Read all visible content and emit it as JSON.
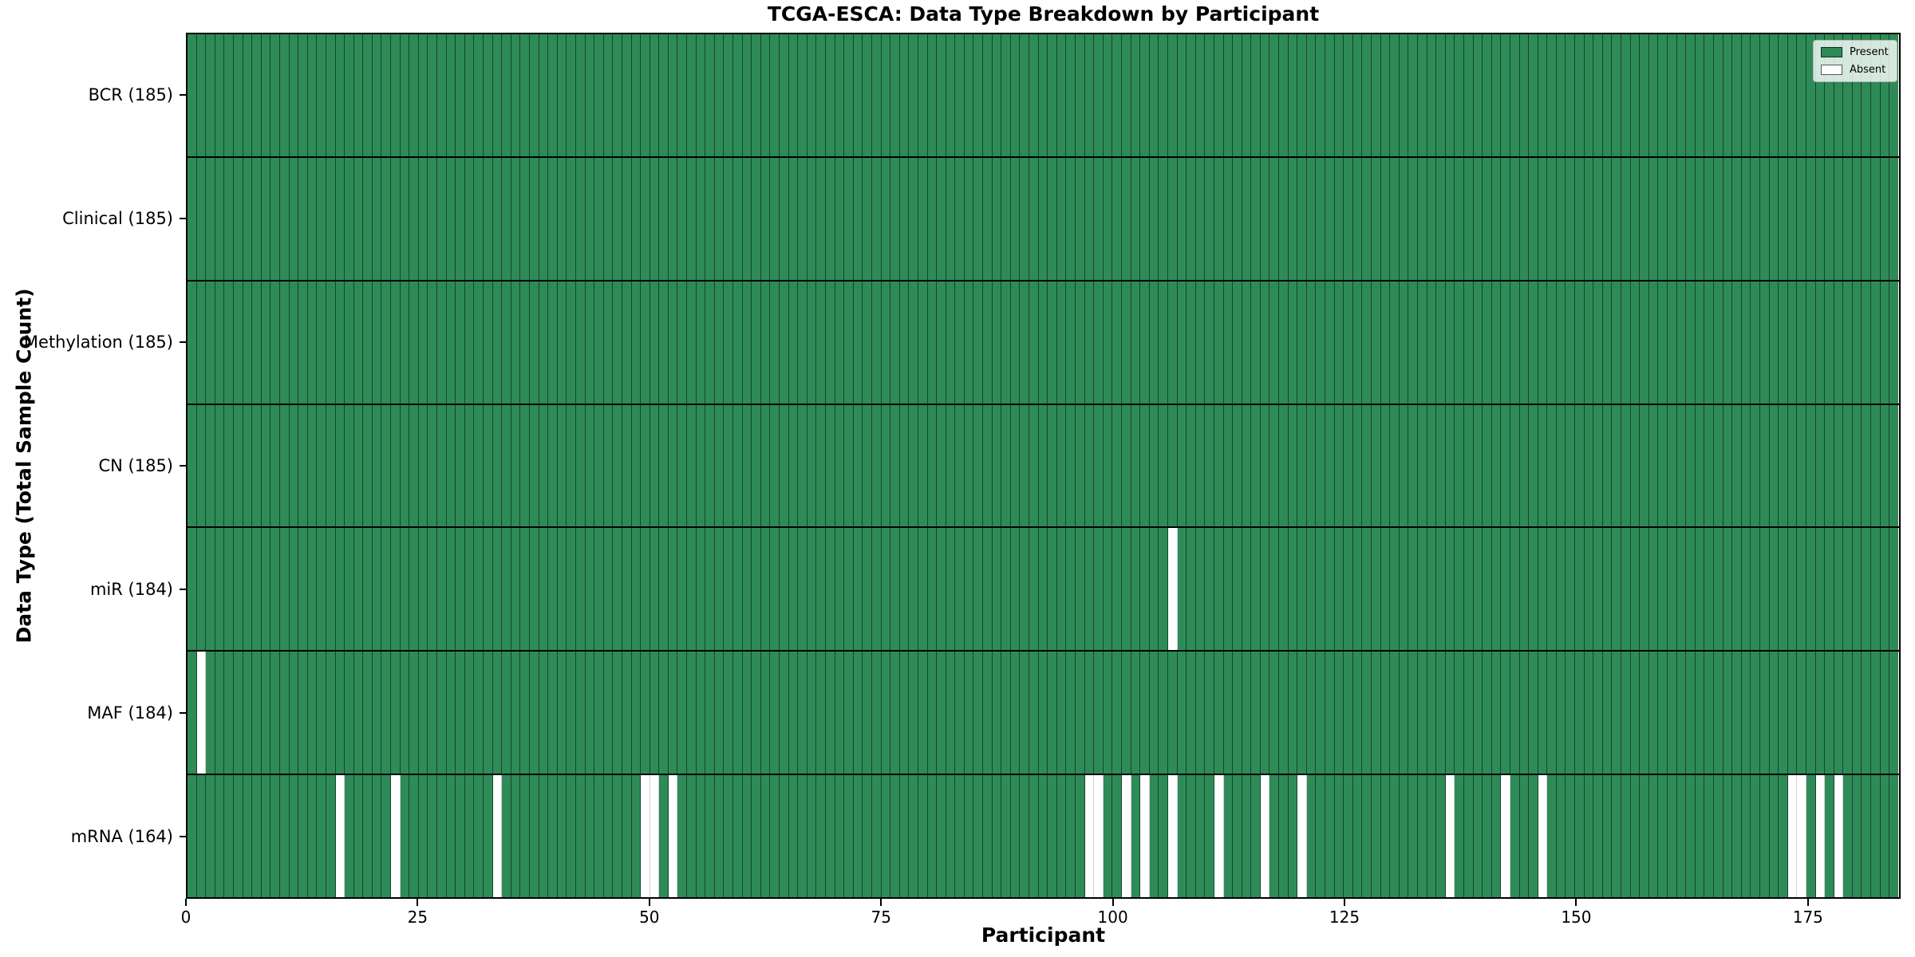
{
  "title": "TCGA-ESCA: Data Type Breakdown by Participant",
  "axes": {
    "xlabel": "Participant",
    "ylabel": "Data Type (Total Sample Count)"
  },
  "legend": {
    "items": [
      {
        "label": "Present",
        "color": "#2e8b57"
      },
      {
        "label": "Absent",
        "color": "#ffffff"
      }
    ]
  },
  "colors": {
    "present": "#2e8b57",
    "absent": "#ffffff",
    "spine": "#000000"
  },
  "chart_data": {
    "type": "heatmap",
    "title": "TCGA-ESCA: Data Type Breakdown by Participant",
    "xlabel": "Participant",
    "ylabel": "Data Type (Total Sample Count)",
    "n_participants": 185,
    "x_axis": {
      "min": 0,
      "max": 185,
      "ticks": [
        0,
        25,
        50,
        75,
        100,
        125,
        150,
        175
      ]
    },
    "legend_position": "upper right",
    "grid": "cell-edges",
    "value_encoding": {
      "present": 1,
      "absent": 0
    },
    "rows": [
      {
        "key": "bcr",
        "label": "BCR (185)",
        "data_type": "BCR",
        "total_count": 185,
        "absent_participants": []
      },
      {
        "key": "clinical",
        "label": "Clinical (185)",
        "data_type": "Clinical",
        "total_count": 185,
        "absent_participants": []
      },
      {
        "key": "methylation",
        "label": "Methylation (185)",
        "data_type": "Methylation",
        "total_count": 185,
        "absent_participants": []
      },
      {
        "key": "cn",
        "label": "CN (185)",
        "data_type": "CN",
        "total_count": 185,
        "absent_participants": []
      },
      {
        "key": "mir",
        "label": "miR (184)",
        "data_type": "miR",
        "total_count": 184,
        "absent_participants": [
          106
        ]
      },
      {
        "key": "maf",
        "label": "MAF (184)",
        "data_type": "MAF",
        "total_count": 184,
        "absent_participants": [
          1
        ]
      },
      {
        "key": "mrna",
        "label": "mRNA (164)",
        "data_type": "mRNA",
        "total_count": 164,
        "absent_participants": [
          16,
          22,
          33,
          49,
          50,
          52,
          97,
          98,
          101,
          103,
          106,
          111,
          116,
          120,
          136,
          142,
          146,
          173,
          174,
          176,
          178
        ]
      }
    ]
  }
}
